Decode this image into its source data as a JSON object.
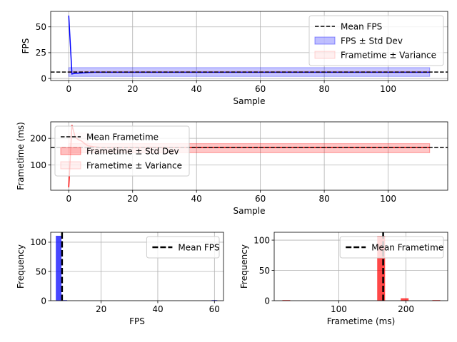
{
  "chart_data": [
    {
      "id": "fps",
      "type": "line",
      "xlabel": "Sample",
      "ylabel": "FPS",
      "xlim": [
        -5.65,
        118.65
      ],
      "ylim": [
        -2,
        65
      ],
      "xticks": [
        0,
        20,
        40,
        60,
        80,
        100
      ],
      "yticks": [
        0,
        25,
        50
      ],
      "grid": true,
      "legend": "upper-right",
      "series": [
        {
          "name": "",
          "color": "#0000ff",
          "x": [
            0,
            1,
            2,
            3,
            4,
            5,
            6,
            8,
            10,
            12,
            113
          ],
          "y": [
            61,
            4.3,
            5.0,
            5.2,
            5.3,
            5.5,
            5.8,
            6.0,
            6.0,
            6.0,
            6.0
          ]
        }
      ],
      "mean": {
        "name": "Mean FPS",
        "value": 6.2,
        "color": "#000000"
      },
      "bands": [
        {
          "name": "FPS ± Std Dev",
          "low": 2.0,
          "high": 10.5,
          "x_start": 0,
          "x_end": 113,
          "color": "#0000ff"
        },
        {
          "name": "Frametime ± Variance",
          "low": 5.4,
          "high": 7.0,
          "x_start": 0,
          "x_end": 113,
          "color": "#ff9999"
        }
      ]
    },
    {
      "id": "frametime",
      "type": "line",
      "xlabel": "Sample",
      "ylabel": "Frametime (ms)",
      "xlim": [
        -5.65,
        118.65
      ],
      "ylim": [
        5,
        262
      ],
      "xticks": [
        0,
        20,
        40,
        60,
        80,
        100
      ],
      "yticks": [
        100,
        200
      ],
      "grid": true,
      "legend": "upper-left",
      "series": [
        {
          "name": "",
          "color": "#ff0000",
          "x": [
            0,
            1,
            2,
            3,
            4,
            5,
            6,
            8,
            10,
            113
          ],
          "y": [
            16,
            250,
            205,
            195,
            190,
            180,
            172,
            168,
            166,
            166
          ]
        }
      ],
      "mean": {
        "name": "Mean Frametime",
        "value": 166,
        "color": "#000000"
      },
      "bands": [
        {
          "name": "Frametime ± Std Dev",
          "low": 146,
          "high": 180,
          "x_start": 0,
          "x_end": 113,
          "color": "#ff0000"
        },
        {
          "name": "Frametime ± Variance",
          "low": 145,
          "high": 220,
          "x_start": 0,
          "x_end": 6,
          "color": "#ff9999"
        }
      ]
    },
    {
      "id": "fps-hist",
      "type": "bar",
      "xlabel": "FPS",
      "ylabel": "Frequency",
      "xlim": [
        2.2,
        63.2
      ],
      "ylim": [
        0,
        117
      ],
      "xticks": [
        20,
        40,
        60
      ],
      "yticks": [
        0,
        50,
        100
      ],
      "grid": true,
      "legend": "upper-right",
      "bin_width": 2.0,
      "bins": [
        {
          "x": 5.0,
          "count": 111
        },
        {
          "x": 7.0,
          "count": 1
        },
        {
          "x": 60.0,
          "count": 1
        }
      ],
      "bar_color": "#0000ff",
      "mean": {
        "name": "Mean FPS",
        "value": 6.2,
        "color": "#000000"
      }
    },
    {
      "id": "frametime-hist",
      "type": "bar",
      "xlabel": "Frametime (ms)",
      "ylabel": "Frequency",
      "xlim": [
        4,
        262
      ],
      "ylim": [
        0,
        113
      ],
      "xticks": [
        100,
        200
      ],
      "yticks": [
        0,
        50,
        100
      ],
      "grid": true,
      "legend": "upper-right",
      "bin_width": 11.7,
      "bins": [
        {
          "x": 22,
          "count": 1
        },
        {
          "x": 163,
          "count": 107
        },
        {
          "x": 198,
          "count": 4
        },
        {
          "x": 245,
          "count": 1
        }
      ],
      "bar_color": "#ff0000",
      "mean": {
        "name": "Mean Frametime",
        "value": 166,
        "color": "#000000"
      }
    }
  ]
}
